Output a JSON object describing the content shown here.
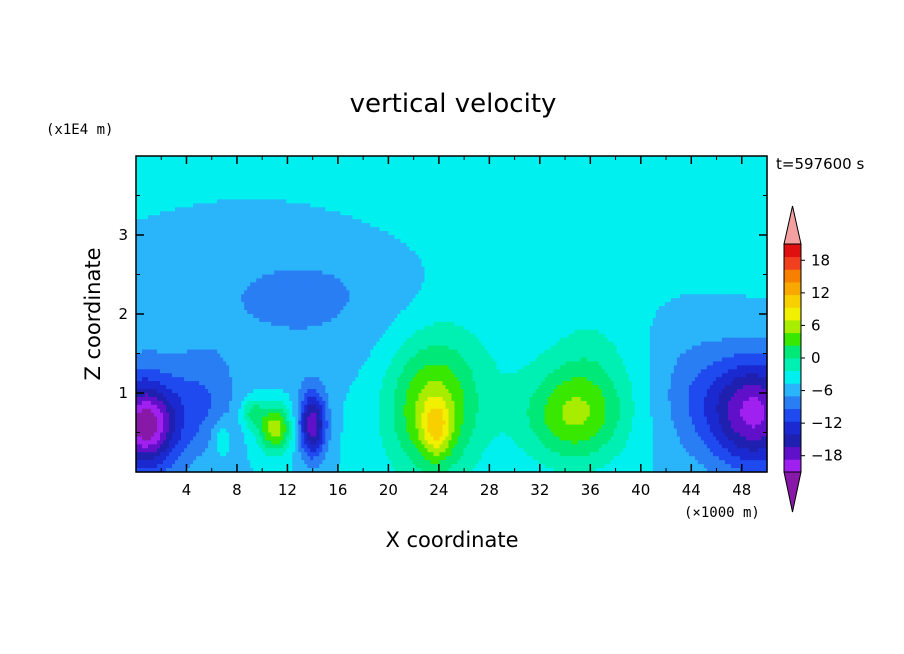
{
  "chart_data": {
    "type": "heatmap",
    "title": "vertical velocity",
    "xlabel": "X coordinate",
    "ylabel": "Z coordinate",
    "x_unit": "(×1000 m)",
    "y_unit": "(x1E4 m)",
    "time_label": "t=597600 s",
    "xlim": [
      0,
      50
    ],
    "ylim": [
      0,
      4
    ],
    "x_ticks": [
      4,
      8,
      12,
      16,
      20,
      24,
      28,
      32,
      36,
      40,
      44,
      48
    ],
    "y_ticks": [
      1,
      2,
      3
    ],
    "colorbar": {
      "min": -21,
      "max": 21,
      "step": 3,
      "tick_values": [
        18,
        12,
        6,
        0,
        -6,
        -12,
        -18
      ],
      "tick_labels": [
        "18",
        "12",
        "6",
        "0",
        "−6",
        "−12",
        "−18"
      ],
      "colors": [
        "#a020f0",
        "#6010c8",
        "#2020b0",
        "#1a2ad0",
        "#1e4af0",
        "#2a7ef4",
        "#2ab4fa",
        "#00f0f0",
        "#00f0b4",
        "#00e878",
        "#38e800",
        "#a8ec00",
        "#f0f000",
        "#f8d000",
        "#f8a800",
        "#f88000",
        "#f04020",
        "#e01010"
      ],
      "over_color": "#f4a0a0",
      "under_color": "#8818a8"
    },
    "blobs": [
      {
        "x": 0.5,
        "z": 0.6,
        "sx": 3.2,
        "sz": 0.65,
        "a": -18
      },
      {
        "x": 1.0,
        "z": 0.6,
        "sx": 1.6,
        "sz": 0.35,
        "a": -6
      },
      {
        "x": 5.5,
        "z": 0.9,
        "sx": 2.5,
        "sz": 0.6,
        "a": -5
      },
      {
        "x": 14.0,
        "z": 0.6,
        "sx": 1.1,
        "sz": 0.42,
        "a": -17
      },
      {
        "x": 11.0,
        "z": 0.55,
        "sx": 1.3,
        "sz": 0.3,
        "a": 14
      },
      {
        "x": 9.2,
        "z": 0.75,
        "sx": 0.9,
        "sz": 0.2,
        "a": 7
      },
      {
        "x": 6.8,
        "z": 0.45,
        "sx": 0.7,
        "sz": 0.22,
        "a": 4
      },
      {
        "x": 23.5,
        "z": 0.75,
        "sx": 3.4,
        "sz": 0.85,
        "a": 12
      },
      {
        "x": 23.8,
        "z": 0.55,
        "sx": 1.1,
        "sz": 0.35,
        "a": 8
      },
      {
        "x": 25.0,
        "z": 1.5,
        "sx": 6.5,
        "sz": 1.1,
        "a": 3
      },
      {
        "x": 34.5,
        "z": 0.7,
        "sx": 4.0,
        "sz": 0.6,
        "a": 10
      },
      {
        "x": 36.0,
        "z": 1.2,
        "sx": 3.5,
        "sz": 0.9,
        "a": 4
      },
      {
        "x": 49.0,
        "z": 0.75,
        "sx": 3.6,
        "sz": 0.7,
        "a": -19
      },
      {
        "x": 44.0,
        "z": 1.0,
        "sx": 3.0,
        "sz": 0.8,
        "a": -4
      },
      {
        "x": 14.0,
        "z": 2.3,
        "sx": 12.0,
        "sz": 1.0,
        "a": -4
      },
      {
        "x": 30.0,
        "z": 3.2,
        "sx": 25.0,
        "sz": 0.8,
        "a": 2
      }
    ]
  }
}
